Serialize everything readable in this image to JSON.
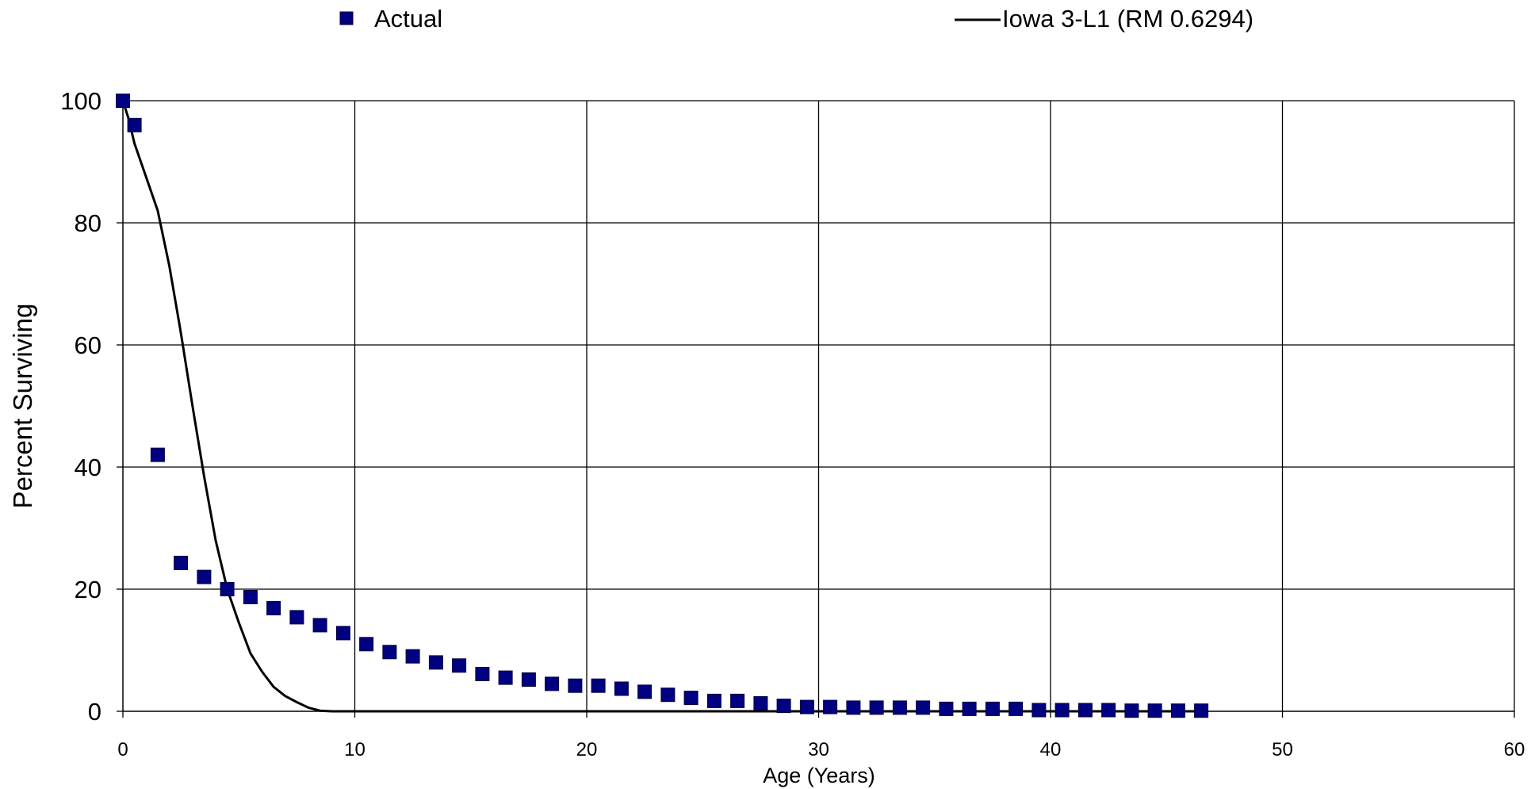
{
  "chart_data": {
    "type": "scatter",
    "title": "",
    "xlabel": "Age (Years)",
    "ylabel": "Percent Surviving",
    "xlim": [
      0,
      60
    ],
    "ylim": [
      0,
      100
    ],
    "x_ticks": [
      "0",
      "10",
      "20",
      "30",
      "40",
      "50",
      "60"
    ],
    "y_ticks": [
      "0",
      "20",
      "40",
      "60",
      "80",
      "100"
    ],
    "grid": true,
    "legend_position": "top",
    "series": [
      {
        "name": "Actual",
        "kind": "markers",
        "marker": "square",
        "color": "#000080",
        "x": [
          0,
          0.5,
          1.5,
          2.5,
          3.5,
          4.5,
          5.5,
          6.5,
          7.5,
          8.5,
          9.5,
          10.5,
          11.5,
          12.5,
          13.5,
          14.5,
          15.5,
          16.5,
          17.5,
          18.5,
          19.5,
          20.5,
          21.5,
          22.5,
          23.5,
          24.5,
          25.5,
          26.5,
          27.5,
          28.5,
          29.5,
          30.5,
          31.5,
          32.5,
          33.5,
          34.5,
          35.5,
          36.5,
          37.5,
          38.5,
          39.5,
          40.5,
          41.5,
          42.5,
          43.5,
          44.5,
          45.5,
          46.5
        ],
        "y": [
          100,
          96,
          42,
          24.3,
          22,
          20,
          18.7,
          16.9,
          15.4,
          14.1,
          12.8,
          11,
          9.7,
          9,
          8,
          7.5,
          6.1,
          5.5,
          5.2,
          4.5,
          4.2,
          4.2,
          3.7,
          3.2,
          2.7,
          2.2,
          1.7,
          1.7,
          1.3,
          0.9,
          0.7,
          0.7,
          0.6,
          0.6,
          0.6,
          0.6,
          0.4,
          0.4,
          0.4,
          0.4,
          0.2,
          0.2,
          0.2,
          0.2,
          0.1,
          0.1,
          0.1,
          0.1
        ]
      },
      {
        "name": "Iowa 3-L1 (RM 0.6294)",
        "kind": "line",
        "color": "#000000",
        "x": [
          0,
          0.25,
          0.5,
          1,
          1.5,
          2,
          2.5,
          3,
          3.5,
          4,
          4.5,
          5,
          5.5,
          6,
          6.5,
          7,
          7.5,
          8,
          8.5,
          9,
          10,
          15,
          20,
          25,
          30,
          35,
          40,
          45,
          46.5
        ],
        "y": [
          100,
          97,
          93,
          87.5,
          82,
          73,
          62,
          50,
          38.5,
          28,
          20,
          14.5,
          9.5,
          6.5,
          4,
          2.5,
          1.5,
          0.6,
          0.1,
          0,
          0,
          0,
          0,
          0,
          0,
          0,
          0,
          0,
          0
        ]
      }
    ]
  },
  "colors": {
    "marker": "#000080",
    "line": "#000000",
    "grid": "#000000",
    "background": "#ffffff"
  }
}
